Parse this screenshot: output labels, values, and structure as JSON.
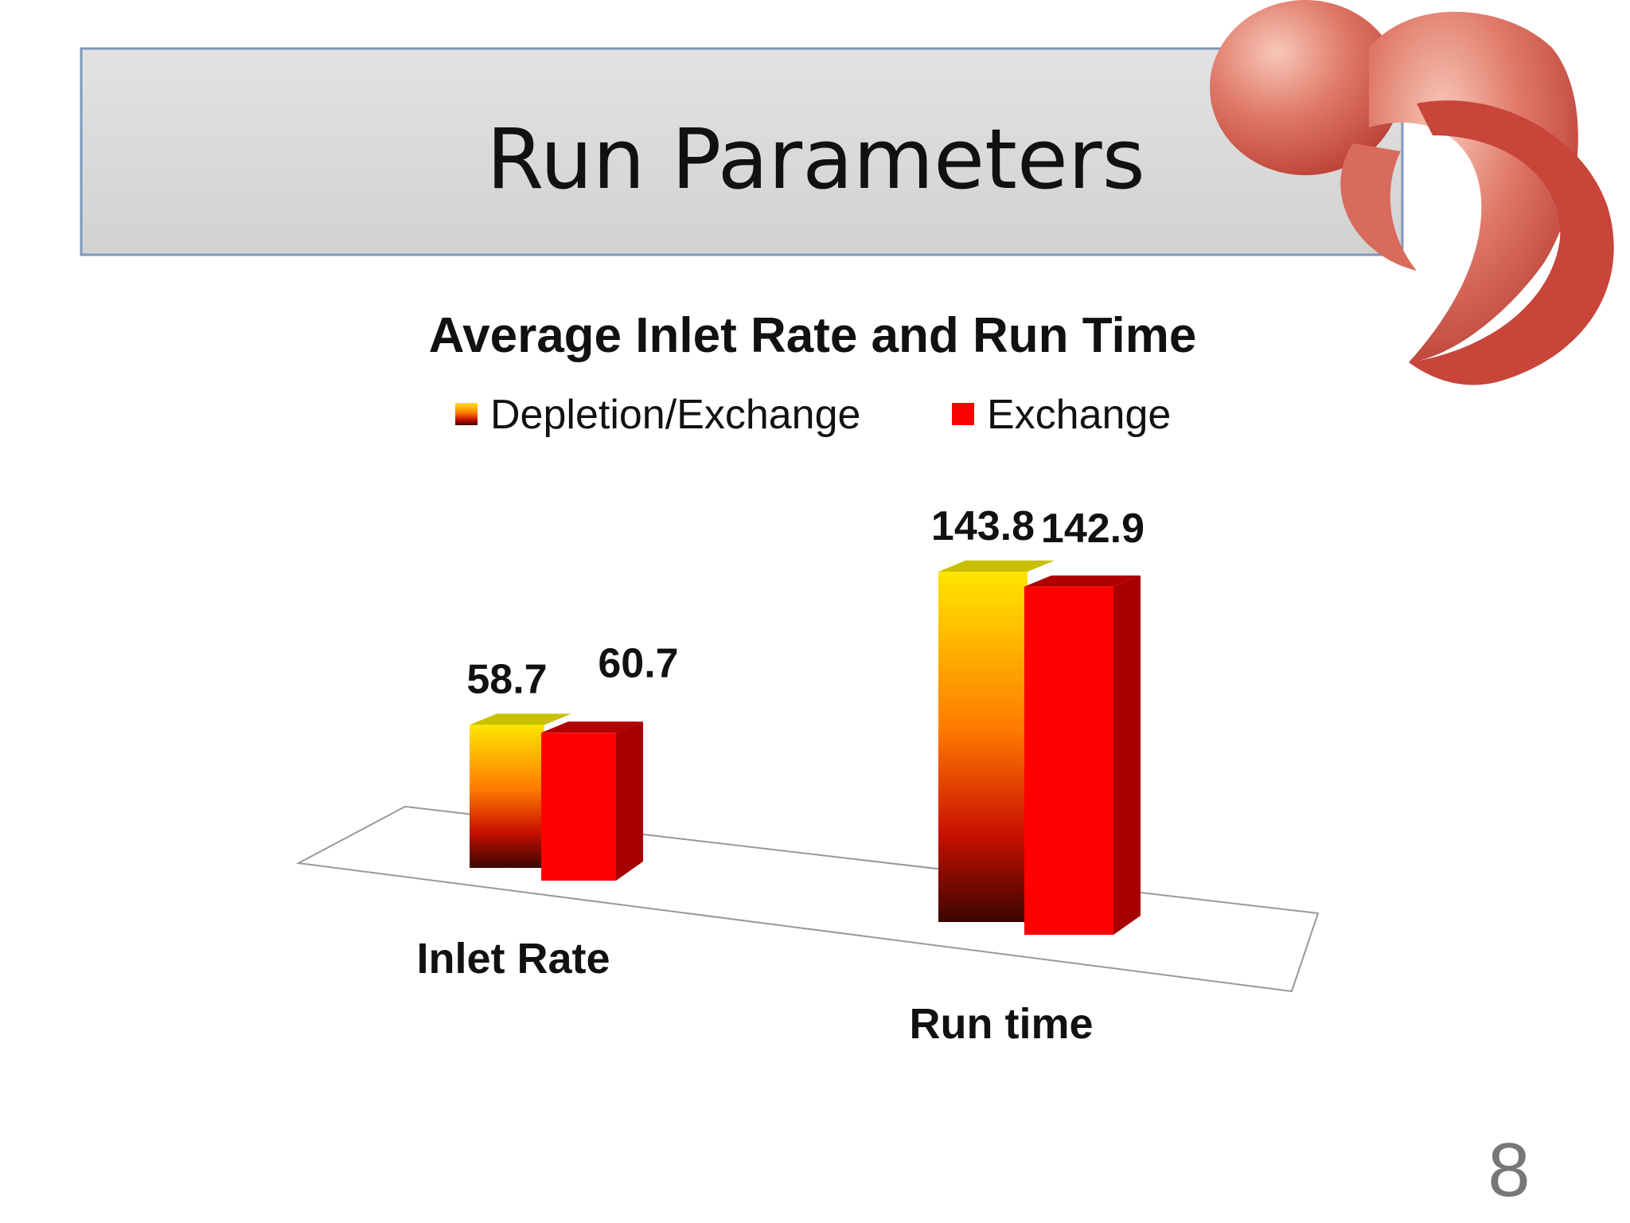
{
  "slide": {
    "title": "Run Parameters",
    "page_number": 8
  },
  "chart_data": {
    "type": "bar3d",
    "title": "Average Inlet Rate and Run Time",
    "categories": [
      "Inlet Rate",
      "Run time"
    ],
    "series": [
      {
        "name": "Depletion/Exchange",
        "color": "#ffe600",
        "values": [
          58.7,
          143.8
        ]
      },
      {
        "name": "Exchange",
        "color": "#ff0000",
        "values": [
          60.7,
          142.9
        ]
      }
    ],
    "legend": "top"
  }
}
